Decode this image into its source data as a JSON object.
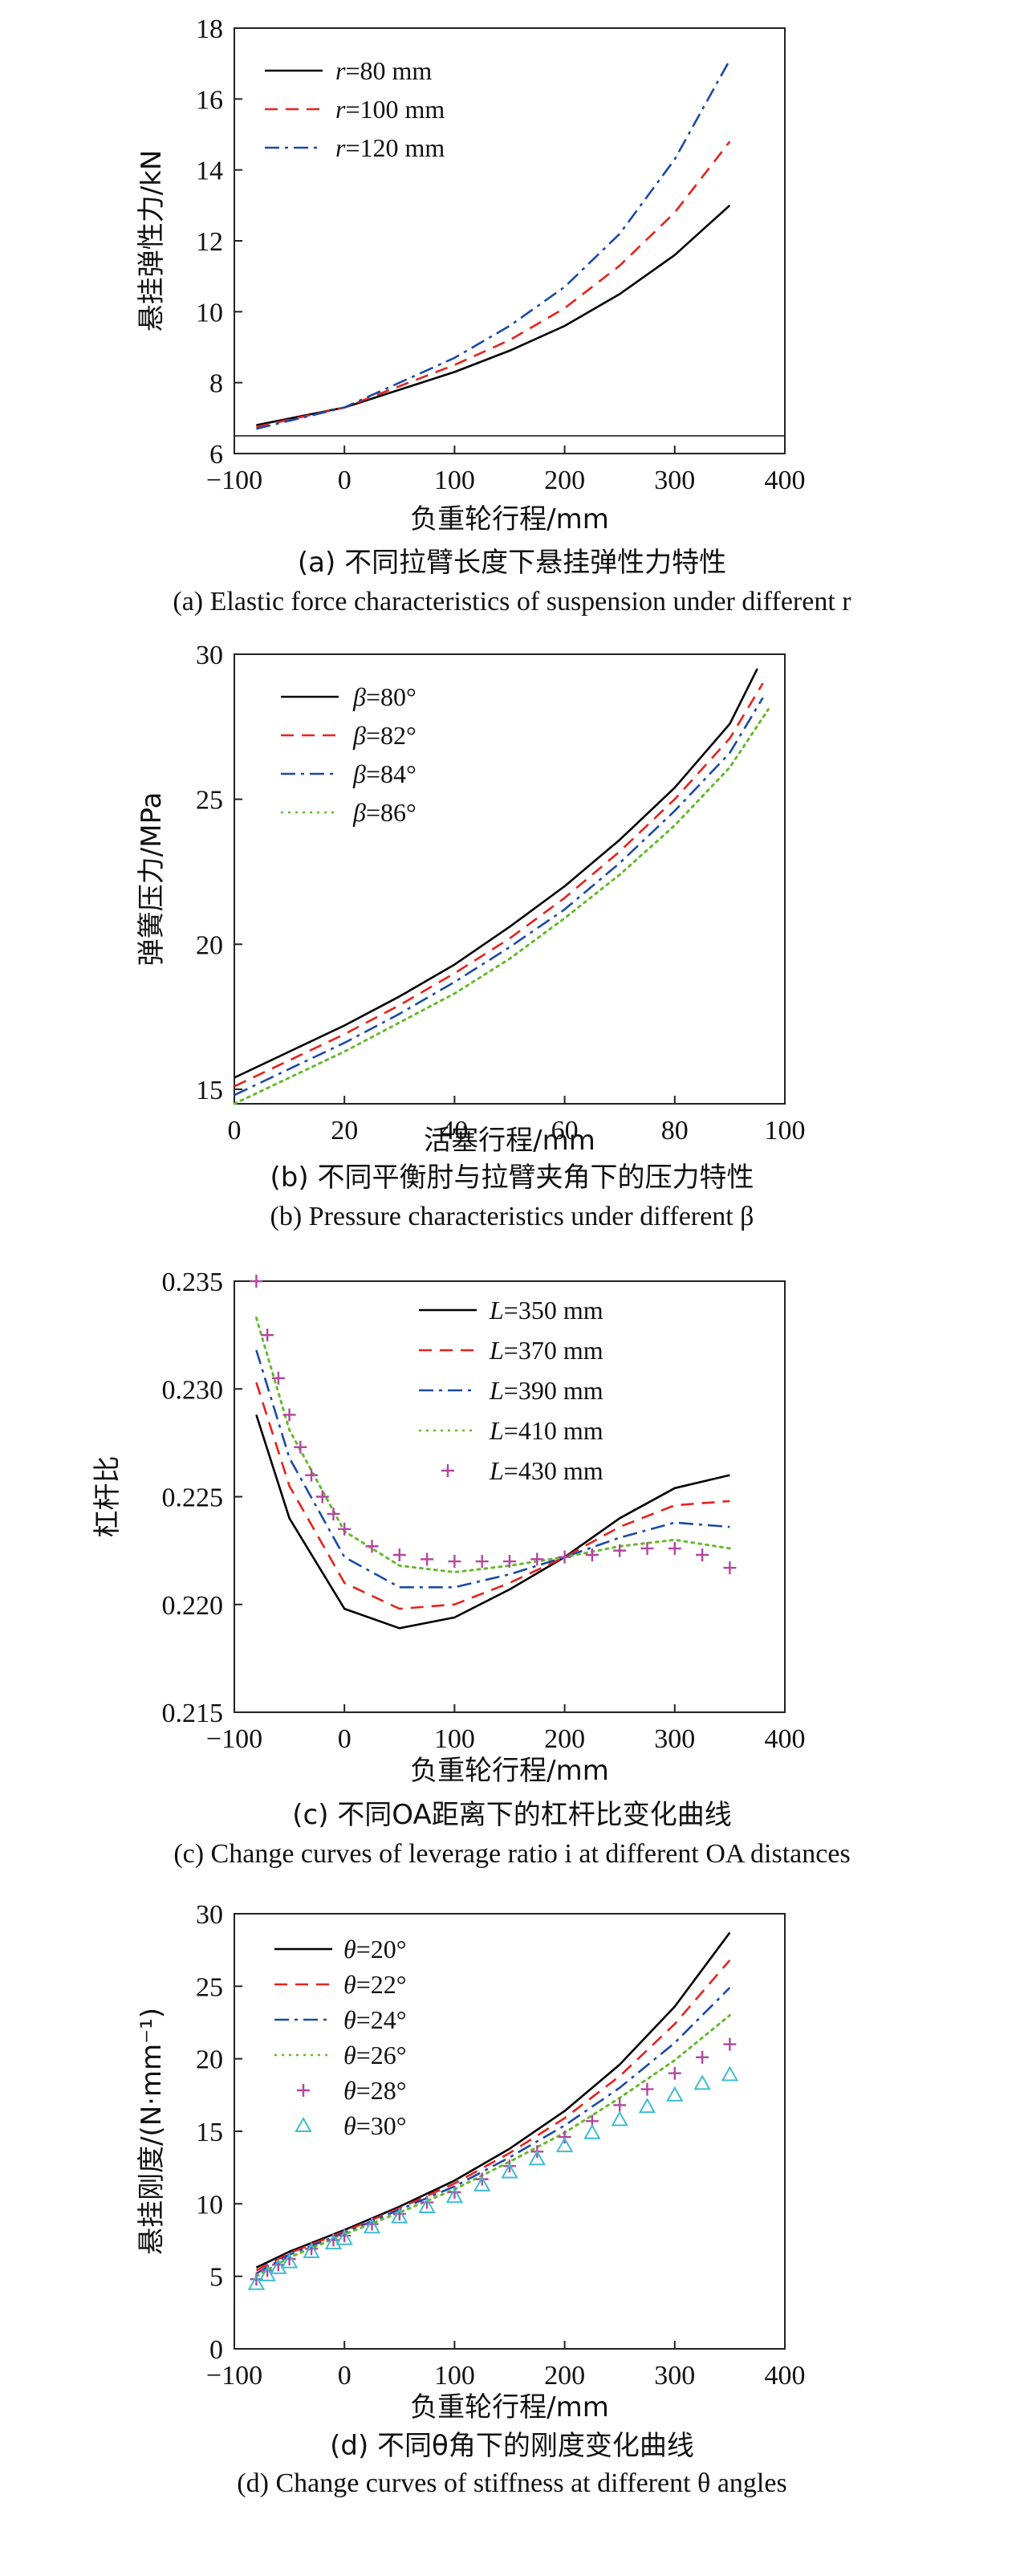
{
  "chart_data": [
    {
      "type": "line",
      "ylabel": "悬挂弹性力/kN",
      "xlabel": "负重轮行程/mm",
      "xlim": [
        -100,
        400
      ],
      "ylim": [
        6,
        18
      ],
      "xticks": [
        "-100",
        "0",
        "100",
        "200",
        "300",
        "400"
      ],
      "yticks": [
        "6",
        "8",
        "10",
        "12",
        "14",
        "16",
        "18"
      ],
      "grid": false,
      "legend_position": "top-left",
      "reference_line_y": 6.5,
      "series": [
        {
          "name_var": "r",
          "name_rest": "=80 mm",
          "color": "#000000",
          "dash": "solid",
          "marker": "none",
          "x": [
            -80,
            0,
            50,
            100,
            150,
            200,
            250,
            300,
            350
          ],
          "y": [
            6.8,
            7.3,
            7.8,
            8.3,
            8.9,
            9.6,
            10.5,
            11.6,
            13.0
          ]
        },
        {
          "name_var": "r",
          "name_rest": "=100 mm",
          "color": "#e8211d",
          "dash": "dashed",
          "marker": "none",
          "x": [
            -80,
            0,
            50,
            100,
            150,
            200,
            250,
            300,
            350
          ],
          "y": [
            6.75,
            7.3,
            7.9,
            8.5,
            9.2,
            10.1,
            11.3,
            12.8,
            14.8
          ]
        },
        {
          "name_var": "r",
          "name_rest": "=120 mm",
          "color": "#1b4aa8",
          "dash": "dashdot",
          "marker": "none",
          "x": [
            -80,
            0,
            50,
            100,
            150,
            200,
            250,
            300,
            350
          ],
          "y": [
            6.7,
            7.3,
            8.0,
            8.7,
            9.6,
            10.7,
            12.2,
            14.3,
            17.1
          ]
        }
      ],
      "caption_cn": "(a) 不同拉臂长度下悬挂弹性力特性",
      "caption_en": "(a) Elastic force characteristics of suspension under different r"
    },
    {
      "type": "line",
      "ylabel": "弹簧压力/MPa",
      "xlabel": "活塞行程/mm",
      "xlim": [
        0,
        100
      ],
      "ylim": [
        14.5,
        30
      ],
      "xticks": [
        "0",
        "20",
        "40",
        "60",
        "80",
        "100"
      ],
      "yticks": [
        "15",
        "20",
        "25",
        "30"
      ],
      "grid": false,
      "legend_position": "top-left",
      "series": [
        {
          "name_var": "β",
          "name_rest": "=80°",
          "color": "#000000",
          "dash": "solid",
          "marker": "none",
          "x": [
            0,
            10,
            20,
            30,
            40,
            50,
            60,
            70,
            80,
            90,
            95
          ],
          "y": [
            15.4,
            16.3,
            17.2,
            18.2,
            19.3,
            20.6,
            22.0,
            23.6,
            25.4,
            27.6,
            29.5
          ]
        },
        {
          "name_var": "β",
          "name_rest": "=82°",
          "color": "#e8211d",
          "dash": "dashed",
          "marker": "none",
          "x": [
            0,
            10,
            20,
            30,
            40,
            50,
            60,
            70,
            80,
            90,
            96
          ],
          "y": [
            15.1,
            16.0,
            16.9,
            17.9,
            19.0,
            20.2,
            21.6,
            23.2,
            25.0,
            27.1,
            29.0
          ]
        },
        {
          "name_var": "β",
          "name_rest": "=84°",
          "color": "#1b4aa8",
          "dash": "dashdot",
          "marker": "none",
          "x": [
            0,
            10,
            20,
            30,
            40,
            50,
            60,
            70,
            80,
            90,
            96
          ],
          "y": [
            14.8,
            15.7,
            16.6,
            17.6,
            18.7,
            19.9,
            21.2,
            22.8,
            24.6,
            26.6,
            28.5
          ]
        },
        {
          "name_var": "β",
          "name_rest": "=86°",
          "color": "#67b82c",
          "dash": "dotted",
          "marker": "none",
          "x": [
            0,
            10,
            20,
            30,
            40,
            50,
            60,
            70,
            80,
            90,
            97
          ],
          "y": [
            14.5,
            15.4,
            16.3,
            17.3,
            18.3,
            19.5,
            20.9,
            22.4,
            24.1,
            26.1,
            28.1
          ]
        }
      ],
      "caption_cn": "(b) 不同平衡肘与拉臂夹角下的压力特性",
      "caption_en": "(b) Pressure characteristics under different β"
    },
    {
      "type": "line",
      "ylabel": "杠杆比",
      "xlabel": "负重轮行程/mm",
      "xlim": [
        -100,
        400
      ],
      "ylim": [
        0.215,
        0.235
      ],
      "xticks": [
        "-100",
        "0",
        "100",
        "200",
        "300",
        "400"
      ],
      "yticks": [
        "0.215",
        "0.220",
        "0.225",
        "0.230",
        "0.235"
      ],
      "grid": false,
      "legend_position": "top-right",
      "series": [
        {
          "name_var": "L",
          "name_rest": "=350 mm",
          "color": "#000000",
          "dash": "solid",
          "marker": "none",
          "x": [
            -80,
            -50,
            0,
            50,
            100,
            150,
            200,
            250,
            300,
            350
          ],
          "y": [
            0.2288,
            0.224,
            0.2198,
            0.2189,
            0.2194,
            0.2207,
            0.2222,
            0.224,
            0.2254,
            0.226
          ]
        },
        {
          "name_var": "L",
          "name_rest": "=370 mm",
          "color": "#e8211d",
          "dash": "dashed",
          "marker": "none",
          "x": [
            -80,
            -50,
            0,
            50,
            100,
            150,
            200,
            250,
            300,
            350
          ],
          "y": [
            0.2303,
            0.2255,
            0.221,
            0.2198,
            0.22,
            0.221,
            0.2222,
            0.2236,
            0.2246,
            0.2248
          ]
        },
        {
          "name_var": "L",
          "name_rest": "=390 mm",
          "color": "#1b4aa8",
          "dash": "dashdot",
          "marker": "none",
          "x": [
            -80,
            -50,
            0,
            50,
            100,
            150,
            200,
            250,
            300,
            350
          ],
          "y": [
            0.2318,
            0.2268,
            0.2222,
            0.2208,
            0.2208,
            0.2214,
            0.2222,
            0.2231,
            0.2238,
            0.2236
          ]
        },
        {
          "name_var": "L",
          "name_rest": "=410 mm",
          "color": "#67b82c",
          "dash": "dotted",
          "marker": "none",
          "x": [
            -80,
            -50,
            0,
            50,
            100,
            150,
            200,
            250,
            300,
            350
          ],
          "y": [
            0.2333,
            0.2281,
            0.2234,
            0.2218,
            0.2215,
            0.2218,
            0.2222,
            0.2227,
            0.223,
            0.2226
          ]
        },
        {
          "name_var": "L",
          "name_rest": "=430 mm",
          "color": "#b2469e",
          "dash": "none",
          "marker": "plus",
          "x": [
            -80,
            -70,
            -60,
            -50,
            -40,
            -30,
            -20,
            -10,
            0,
            25,
            50,
            75,
            100,
            125,
            150,
            175,
            200,
            225,
            250,
            275,
            300,
            325,
            350
          ],
          "y": [
            0.235,
            0.2325,
            0.2305,
            0.2288,
            0.2273,
            0.226,
            0.225,
            0.2242,
            0.2235,
            0.2227,
            0.2223,
            0.2221,
            0.222,
            0.222,
            0.222,
            0.2221,
            0.2222,
            0.2223,
            0.2225,
            0.2226,
            0.2226,
            0.2223,
            0.2217
          ]
        }
      ],
      "caption_cn": "(c) 不同OA距离下的杠杆比变化曲线",
      "caption_en": "(c) Change curves of leverage ratio i at different OA distances"
    },
    {
      "type": "line",
      "ylabel": "悬挂刚度/(N·mm⁻¹)",
      "xlabel": "负重轮行程/mm",
      "xlim": [
        -100,
        400
      ],
      "ylim": [
        0,
        30
      ],
      "xticks": [
        "-100",
        "0",
        "100",
        "200",
        "300",
        "400"
      ],
      "yticks": [
        "0",
        "5",
        "10",
        "15",
        "20",
        "25",
        "30"
      ],
      "grid": false,
      "legend_position": "top-left",
      "series": [
        {
          "name_var": "θ",
          "name_rest": "=20°",
          "color": "#000000",
          "dash": "solid",
          "marker": "none",
          "x": [
            -80,
            -50,
            0,
            50,
            100,
            150,
            200,
            250,
            300,
            350
          ],
          "y": [
            5.6,
            6.7,
            8.2,
            9.8,
            11.6,
            13.8,
            16.4,
            19.6,
            23.6,
            28.7
          ]
        },
        {
          "name_var": "θ",
          "name_rest": "=22°",
          "color": "#e8211d",
          "dash": "dashed",
          "marker": "none",
          "x": [
            -80,
            -50,
            0,
            50,
            100,
            150,
            200,
            250,
            300,
            350
          ],
          "y": [
            5.4,
            6.6,
            8.1,
            9.7,
            11.4,
            13.5,
            15.9,
            18.8,
            22.4,
            26.8
          ]
        },
        {
          "name_var": "θ",
          "name_rest": "=24°",
          "color": "#1b4aa8",
          "dash": "dashdot",
          "marker": "none",
          "x": [
            -80,
            -50,
            0,
            50,
            100,
            150,
            200,
            250,
            300,
            350
          ],
          "y": [
            5.2,
            6.5,
            8.0,
            9.6,
            11.2,
            13.2,
            15.4,
            18.0,
            21.1,
            24.9
          ]
        },
        {
          "name_var": "θ",
          "name_rest": "=26°",
          "color": "#67b82c",
          "dash": "dotted",
          "marker": "none",
          "x": [
            -80,
            -50,
            0,
            50,
            100,
            150,
            200,
            250,
            300,
            350
          ],
          "y": [
            5.0,
            6.3,
            7.9,
            9.4,
            11.0,
            12.9,
            14.9,
            17.3,
            19.9,
            23.0
          ]
        },
        {
          "name_var": "θ",
          "name_rest": "=28°",
          "color": "#b2469e",
          "dash": "none",
          "marker": "plus",
          "x": [
            -80,
            -70,
            -60,
            -50,
            -30,
            -10,
            0,
            25,
            50,
            75,
            100,
            125,
            150,
            175,
            200,
            225,
            250,
            275,
            300,
            325,
            350
          ],
          "y": [
            4.8,
            5.4,
            5.8,
            6.2,
            6.9,
            7.5,
            7.8,
            8.6,
            9.3,
            10.1,
            10.8,
            11.7,
            12.6,
            13.6,
            14.6,
            15.7,
            16.8,
            17.9,
            19.0,
            20.1,
            21.0
          ]
        },
        {
          "name_var": "θ",
          "name_rest": "=30°",
          "color": "#3fbcd0",
          "dash": "none",
          "marker": "triangle",
          "x": [
            -80,
            -70,
            -60,
            -50,
            -30,
            -10,
            0,
            25,
            50,
            75,
            100,
            125,
            150,
            175,
            200,
            225,
            250,
            275,
            300,
            325,
            350
          ],
          "y": [
            4.5,
            5.1,
            5.6,
            6.0,
            6.7,
            7.3,
            7.6,
            8.4,
            9.1,
            9.8,
            10.5,
            11.3,
            12.2,
            13.1,
            14.0,
            14.9,
            15.8,
            16.7,
            17.5,
            18.3,
            18.9
          ]
        }
      ],
      "caption_cn": "(d) 不同θ角下的刚度变化曲线",
      "caption_en": "(d)  Change curves of stiffness at different θ angles"
    }
  ]
}
